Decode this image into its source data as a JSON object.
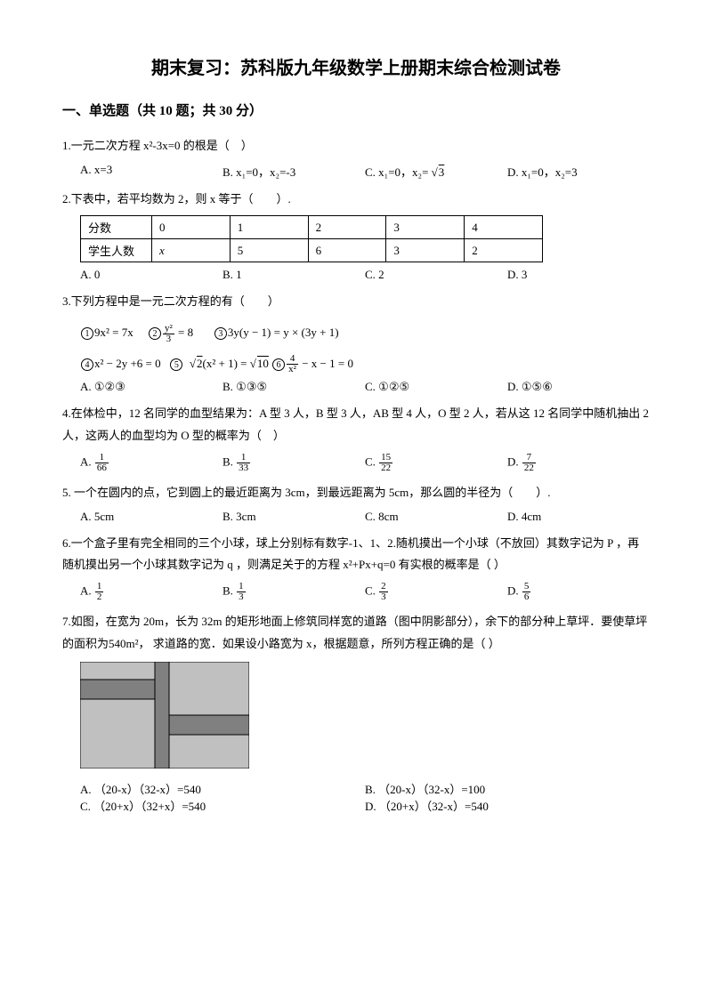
{
  "title": "期末复习：苏科版九年级数学上册期末综合检测试卷",
  "section1": "一、单选题（共 10 题；共 30 分）",
  "q1": {
    "stem": "1.一元二次方程 x²-3x=0 的根是（　）",
    "A": "A. x=3",
    "B": "B. x₁=0，x₂=-3",
    "C_pre": "C. x₁=0，x₂= ",
    "C_rad": "3",
    "D": "D. x₁=0，x₂=3"
  },
  "q2": {
    "stem": "2.下表中，若平均数为 2，则 x 等于（　　）.",
    "h1": "分数",
    "h2": "0",
    "h3": "1",
    "h4": "2",
    "h5": "3",
    "h6": "4",
    "r1": "学生人数",
    "r2": "x",
    "r3": "5",
    "r4": "6",
    "r5": "3",
    "r6": "2",
    "A": "A. 0",
    "B": "B. 1",
    "C": "C. 2",
    "D": "D. 3"
  },
  "q3": {
    "stem": "3.下列方程中是一元二次方程的有（　　）",
    "e1": "9x² = 7x",
    "e2n": "y²",
    "e2d": "3",
    "e2r": " = 8",
    "e3": "3y(y − 1) = y × (3y + 1)",
    "e4": "x² − 2y +6 = 0",
    "e5a": "2",
    "e5b": "(x² + 1) = ",
    "e5c": "10",
    "e6n": "4",
    "e6d": "x²",
    "e6r": " − x − 1 = 0",
    "A": "A. ①②③",
    "B": "B. ①③⑤",
    "C": "C. ①②⑤",
    "D": "D. ①⑤⑥"
  },
  "q4": {
    "stem": "4.在体检中，12 名同学的血型结果为：A 型 3 人，B 型 3 人，AB 型 4 人，O 型 2 人，若从这 12 名同学中随机抽出 2 人，这两人的血型均为 O 型的概率为（　）",
    "An": "1",
    "Ad": "66",
    "Bn": "1",
    "Bd": "33",
    "Cn": "15",
    "Cd": "22",
    "Dn": "7",
    "Dd": "22",
    "Ap": "A. ",
    "Bp": "B. ",
    "Cp": "C. ",
    "Dp": "D. "
  },
  "q5": {
    "stem": "5.  一个在圆内的点，它到圆上的最近距离为 3cm，到最远距离为 5cm，那么圆的半径为（　　）.",
    "A": "A. 5cm",
    "B": "B. 3cm",
    "C": "C. 8cm",
    "D": "D. 4cm"
  },
  "q6": {
    "stem": "6.一个盒子里有完全相同的三个小球，球上分别标有数字-1、1、2.随机摸出一个小球（不放回）其数字记为 P  ，再随机摸出另一个小球其数字记为 q  ，则满足关于的方程  x²+Px+q=0   有实根的概率是（  ）",
    "An": "1",
    "Ad": "2",
    "Bn": "1",
    "Bd": "3",
    "Cn": "2",
    "Cd": "3",
    "Dn": "5",
    "Dd": "6",
    "Ap": "A. ",
    "Bp": "B. ",
    "Cp": "C. ",
    "Dp": "D. "
  },
  "q7": {
    "stem1": "7.如图，在宽为 20m，长为 32m 的矩形地面上修筑同样宽的道路（图中阴影部分），余下的部分种上草坪．要使草坪的面积为",
    "area": "540m²",
    "stem2": "，  求道路的宽．如果设小路宽为 x，根据题意，所列方程正确的是（  ）",
    "A": "A. （20-x）（32-x）=540",
    "B": "B. （20-x）（32-x）=100",
    "C": "C. （20+x）（32+x）=540",
    "D": "D. （20+x）（32-x）=540",
    "fig": {
      "bg": "#c0c0c0",
      "road": "#808080",
      "border": "#000000",
      "w": 190,
      "h": 120
    }
  }
}
